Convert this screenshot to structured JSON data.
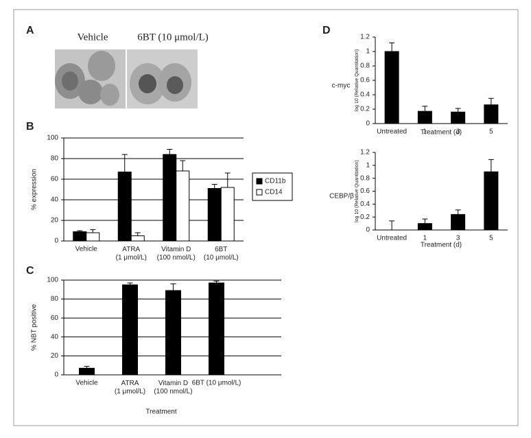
{
  "panel_labels": [
    "A",
    "B",
    "C",
    "D"
  ],
  "micrograph_captions": [
    "Vehicle",
    "6BT (10 μmol/L)"
  ],
  "chart_data": [
    {
      "type": "bar",
      "ylabel": "% expression",
      "categories": [
        "Vehicle",
        "ATRA\n(1 μmol/L)",
        "Vitamin D\n(100 nmol/L)",
        "6BT\n(10 μmol/L)"
      ],
      "series": [
        {
          "name": "CD11b",
          "color": "#000000",
          "values": [
            9,
            67,
            84,
            51
          ],
          "errors": [
            1,
            17,
            5,
            4
          ]
        },
        {
          "name": "CD14",
          "color": "#ffffff",
          "values": [
            8,
            5,
            68,
            52
          ],
          "errors": [
            3,
            3,
            10,
            14
          ]
        }
      ],
      "ylim": [
        0,
        100
      ],
      "yticks": [
        0,
        20,
        40,
        60,
        80,
        100
      ],
      "grid": true,
      "legend": "right"
    },
    {
      "type": "bar",
      "ylabel": "% NBT positive",
      "xlabel": "Treatment",
      "categories": [
        "Vehicle",
        "ATRA\n(1 μmol/L)",
        "Vitamin D\n(100 nmol/L)",
        "6BT (10 μmol/L)"
      ],
      "series": [
        {
          "color": "#000000",
          "values": [
            7,
            95,
            89,
            97
          ],
          "errors": [
            2,
            2,
            7,
            2
          ]
        }
      ],
      "ylim": [
        0,
        100
      ],
      "yticks": [
        0,
        20,
        40,
        60,
        80,
        100
      ],
      "grid": true
    },
    {
      "type": "bar",
      "ylabel": "log 10 (Relative Quantitation)",
      "xlabel": "Treatment (d)",
      "annotation": "c-myc",
      "categories": [
        "Untreated",
        "1",
        "3",
        "5"
      ],
      "series": [
        {
          "color": "#000000",
          "values": [
            1.0,
            0.17,
            0.16,
            0.26
          ],
          "errors": [
            0.12,
            0.07,
            0.05,
            0.09
          ]
        }
      ],
      "ylim": [
        0,
        1.2
      ],
      "yticks": [
        0,
        0.2,
        0.4,
        0.6,
        0.8,
        1,
        1.2
      ],
      "grid": false
    },
    {
      "type": "bar",
      "ylabel": "log 10 (Relative Quantitation)",
      "xlabel": "Treatment (d)",
      "annotation": "CEBP/β",
      "categories": [
        "Untreated",
        "1",
        "3",
        "5"
      ],
      "series": [
        {
          "color": "#000000",
          "values": [
            0,
            0.1,
            0.24,
            0.9
          ],
          "errors": [
            0.14,
            0.07,
            0.07,
            0.19
          ]
        }
      ],
      "ylim": [
        0,
        1.2
      ],
      "yticks": [
        0,
        0.2,
        0.4,
        0.6,
        0.8,
        1,
        1.2
      ],
      "grid": false
    }
  ]
}
